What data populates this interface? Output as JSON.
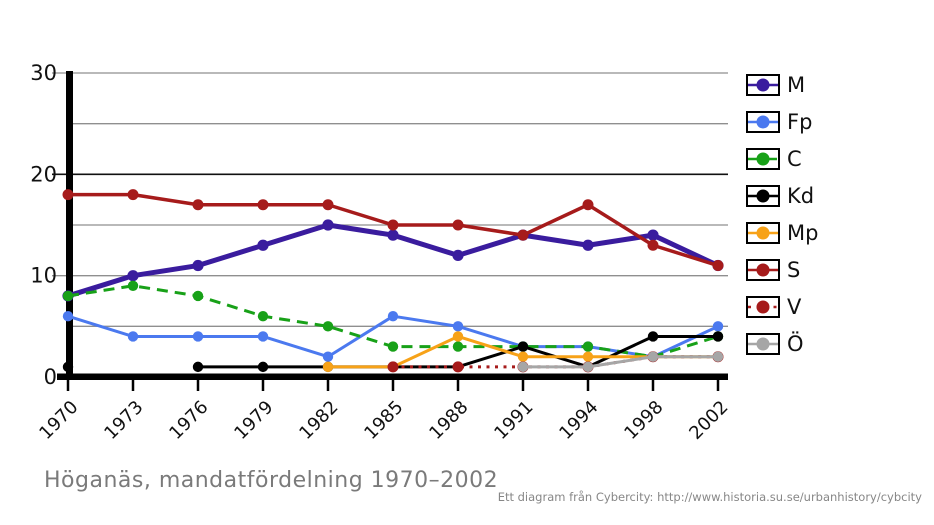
{
  "title": "Höganäs, mandatfördelning 1970–2002",
  "attribution": "Ett diagram från Cybercity: http://www.historia.su.se/urbanhistory/cybcity",
  "axis": {
    "y_tick_labels": [
      0,
      10,
      20,
      30
    ],
    "grid_values": [
      5,
      10,
      15,
      20,
      25,
      30
    ],
    "grid_color_normal": "#8f8f8f",
    "grid_color_emphasis": "#111111",
    "emphasized_grid_value": 20,
    "axis_color": "#000000"
  },
  "chart_data": {
    "type": "line",
    "title": "Höganäs, mandatfördelning 1970–2002",
    "xlabel": "",
    "ylabel": "",
    "ylim": [
      0,
      30
    ],
    "grid": "on",
    "legend_position": "right",
    "categories": [
      "1970",
      "1973",
      "1976",
      "1979",
      "1982",
      "1985",
      "1988",
      "1991",
      "1994",
      "1998",
      "2002"
    ],
    "series": [
      {
        "name": "M",
        "color": "#3a1c9e",
        "dash": "solid",
        "width": 5,
        "marker_r": 5.6,
        "values": [
          8,
          10,
          11,
          13,
          15,
          14,
          12,
          14,
          13,
          14,
          11
        ]
      },
      {
        "name": "Fp",
        "color": "#4b79ef",
        "dash": "solid",
        "width": 3,
        "marker_r": 5.2,
        "values": [
          6,
          4,
          4,
          4,
          2,
          6,
          5,
          3,
          3,
          2,
          5
        ]
      },
      {
        "name": "C",
        "color": "#18a118",
        "dash": "dashed",
        "width": 3,
        "marker_r": 5.2,
        "values": [
          8,
          9,
          8,
          6,
          5,
          3,
          3,
          3,
          3,
          2,
          4
        ]
      },
      {
        "name": "Kd",
        "color": "#000000",
        "dash": "solid",
        "width": 3,
        "marker_r": 5.2,
        "values": [
          1,
          null,
          1,
          1,
          1,
          1,
          1,
          3,
          1,
          4,
          4
        ]
      },
      {
        "name": "Mp",
        "color": "#f7a218",
        "dash": "solid",
        "width": 3,
        "marker_r": 5.2,
        "values": [
          null,
          null,
          null,
          null,
          1,
          1,
          4,
          2,
          2,
          2,
          2
        ]
      },
      {
        "name": "S",
        "color": "#a61b1b",
        "dash": "solid",
        "width": 3.5,
        "marker_r": 5.5,
        "values": [
          18,
          18,
          17,
          17,
          17,
          15,
          15,
          14,
          17,
          13,
          11
        ]
      },
      {
        "name": "V",
        "color": "#a61b1b",
        "dash": "dotted",
        "width": 3,
        "marker_r": 5.5,
        "values": [
          null,
          null,
          null,
          null,
          null,
          1,
          1,
          1,
          1,
          2,
          2
        ]
      },
      {
        "name": "Ö",
        "color": "#a6a6a6",
        "dash": "solid",
        "width": 3,
        "marker_r": 5.2,
        "values": [
          null,
          null,
          null,
          null,
          null,
          null,
          null,
          1,
          1,
          2,
          2
        ]
      }
    ]
  }
}
